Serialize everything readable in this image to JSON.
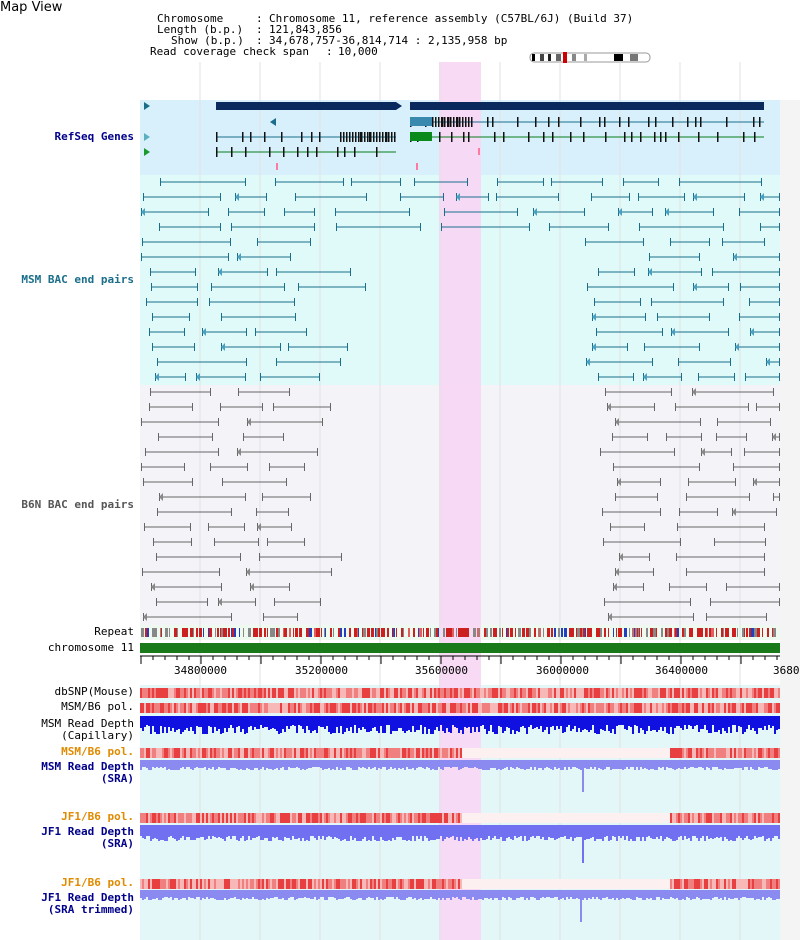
{
  "title": "Map View",
  "header": {
    "chromosome_key": "Chromosome",
    "chromosome_value": "Chromosome 11, reference assembly (C57BL/6J) (Build 37)",
    "length_key": "Length (b.p.)",
    "length_value": "121,843,856",
    "show_key": "Show (b.p.)",
    "show_value": "34,678,757-36,814,714 : 2,135,958 bp",
    "coverage_key": "Read coverage check span",
    "coverage_value": "10,000"
  },
  "tracks": {
    "refseq": "RefSeq Genes",
    "msm_bac": "MSM BAC end pairs",
    "b6n_bac": "B6N BAC end pairs",
    "repeat": "Repeat",
    "chromosome": "chromosome 11",
    "dbsnp": "dbSNP(Mouse)",
    "msm_b6_pol_1": "MSM/B6 pol.",
    "msm_rd_cap_1": "MSM Read Depth",
    "msm_rd_cap_2": "(Capillary)",
    "msm_b6_pol_2": "MSM/B6 pol.",
    "msm_rd_sra_1": "MSM Read Depth",
    "msm_rd_sra_2": "(SRA)",
    "jf1_b6_pol_1": "JF1/B6 pol.",
    "jf1_rd_sra_1": "JF1 Read Depth",
    "jf1_rd_sra_2": "(SRA)",
    "jf1_b6_pol_2": "JF1/B6 pol.",
    "jf1_rd_trim_1": "JF1 Read Depth",
    "jf1_rd_trim_2": "(SRA trimmed)"
  },
  "axis_ticks": [
    "34800000",
    "35200000",
    "35600000",
    "36000000",
    "36400000",
    "3680"
  ],
  "colors": {
    "refseq_bg": "#d8f0fb",
    "msm_bg": "#e0fafa",
    "b6n_bg": "#f4f4f8",
    "highlight": "#f8d6f4",
    "navy": "#0a2a5e",
    "teal": "#1a6e8a",
    "chromosome": "#1a7a1a",
    "depth_blue": "#1010e0",
    "depth_light": "#8080f0",
    "orange_label": "#e08a00",
    "blue_label": "#00008b"
  }
}
